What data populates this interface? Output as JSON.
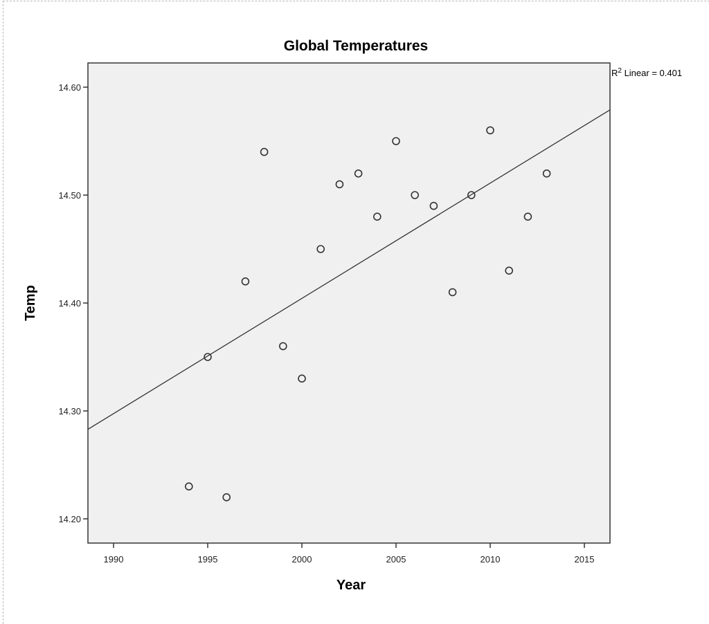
{
  "chart_data": {
    "type": "scatter",
    "title": "Global Temperatures",
    "xlabel": "Year",
    "ylabel": "Temp",
    "xlim": [
      1988.6,
      2016.3
    ],
    "ylim": [
      14.177,
      14.623
    ],
    "x_ticks": [
      1990,
      1995,
      2000,
      2005,
      2010,
      2015
    ],
    "x_tick_labels": [
      "1990",
      "1995",
      "2000",
      "2005",
      "2010",
      "2015"
    ],
    "y_ticks": [
      14.2,
      14.3,
      14.4,
      14.5,
      14.6
    ],
    "y_tick_labels": [
      "14.20",
      "14.30",
      "14.40",
      "14.50",
      "14.60"
    ],
    "grid": false,
    "plot_background": "#f0f0f0",
    "marker": "open-circle",
    "series": [
      {
        "name": "Temp",
        "x": [
          1994,
          1995,
          1996,
          1997,
          1998,
          1999,
          2000,
          2001,
          2002,
          2003,
          2004,
          2005,
          2006,
          2007,
          2008,
          2009,
          2010,
          2011,
          2012,
          2013
        ],
        "y": [
          14.23,
          14.35,
          14.22,
          14.42,
          14.54,
          14.36,
          14.33,
          14.45,
          14.51,
          14.52,
          14.48,
          14.55,
          14.5,
          14.49,
          14.41,
          14.5,
          14.56,
          14.43,
          14.48,
          14.52
        ]
      }
    ],
    "fit_line": {
      "type": "linear",
      "x": [
        1988.6,
        2016.3
      ],
      "y": [
        14.283,
        14.579
      ],
      "annotation": "R² Linear = 0.401",
      "r_squared": 0.401
    }
  },
  "annotation": {
    "r_prefix": "R",
    "r_sup": "2",
    "r_text": " Linear = 0.401"
  }
}
